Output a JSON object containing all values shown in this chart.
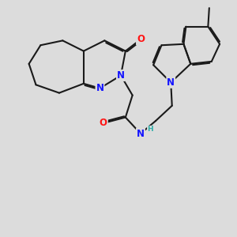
{
  "bg_color": "#dcdcdc",
  "bond_color": "#1a1a1a",
  "bond_width": 1.5,
  "dbo": 0.055,
  "atom_colors": {
    "N": "#1414ff",
    "O": "#ff1414",
    "H": "#2aada8",
    "C": "#1a1a1a"
  },
  "fs": 8.5
}
